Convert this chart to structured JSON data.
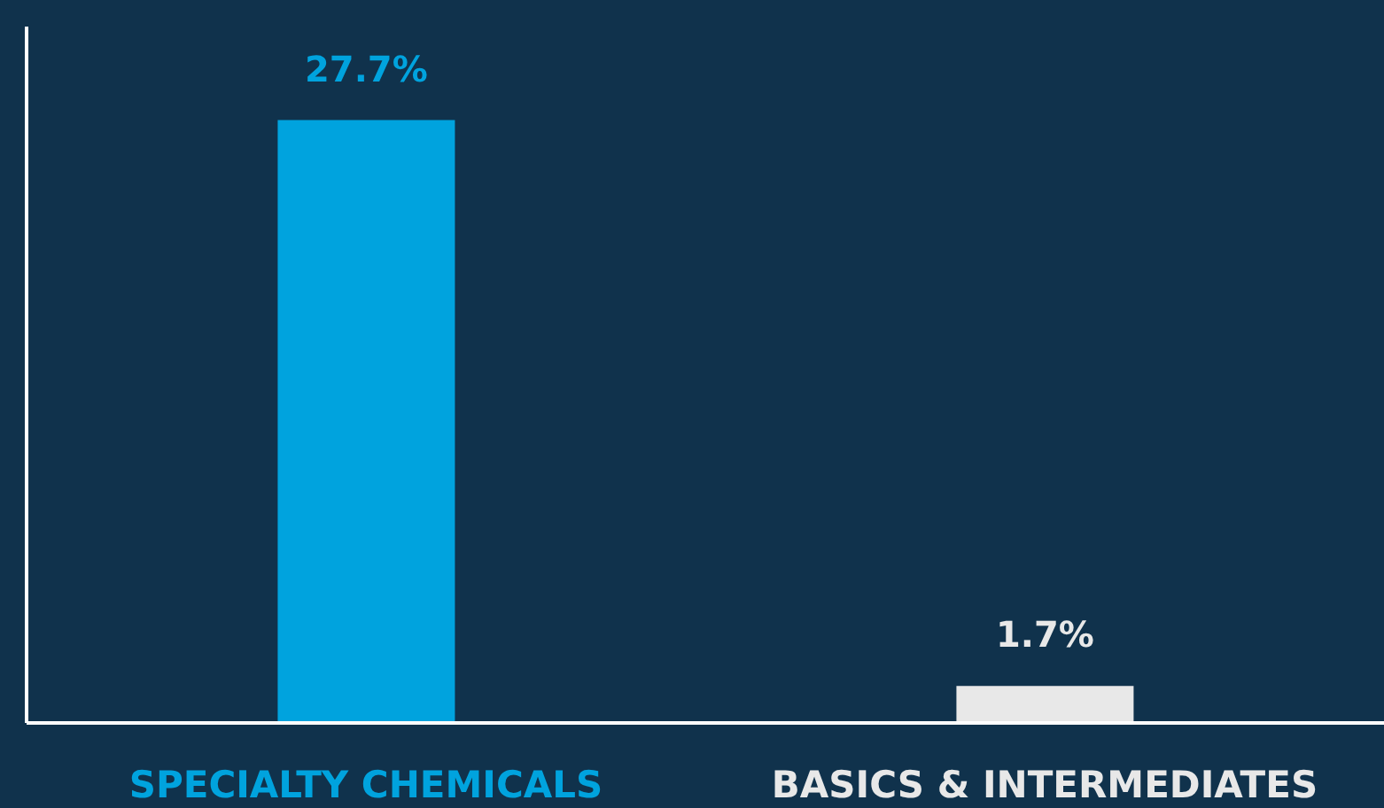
{
  "chart_data": {
    "type": "bar",
    "categories": [
      "SPECIALTY CHEMICALS",
      "BASICS & INTERMEDIATES"
    ],
    "values": [
      27.7,
      1.7
    ],
    "colors": [
      "#00a3de",
      "#e8e8e8"
    ],
    "value_labels": [
      "27.7%",
      "1.7%"
    ],
    "ylim": [
      0,
      32
    ],
    "tick_labels": "x"
  }
}
